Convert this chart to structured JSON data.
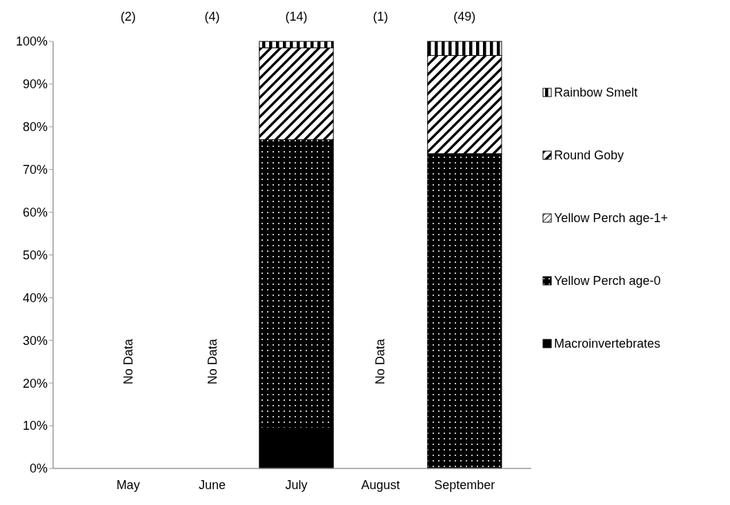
{
  "chart_data": {
    "type": "bar",
    "stacked": true,
    "categories": [
      "May",
      "June",
      "July",
      "August",
      "September"
    ],
    "series": [
      {
        "name": "Macroinvertebrates",
        "color": "#000000",
        "values": [
          null,
          null,
          9.5,
          null,
          0
        ]
      },
      {
        "name": "Yellow Perch age-0",
        "color": "#000000",
        "values": [
          null,
          null,
          67.5,
          null,
          73.7
        ]
      },
      {
        "name": "Yellow Perch age-1+",
        "color": "#000000",
        "values": [
          null,
          null,
          0,
          null,
          0
        ]
      },
      {
        "name": "Round Goby",
        "color": "#000000",
        "values": [
          null,
          null,
          21.5,
          null,
          23
        ]
      },
      {
        "name": "Rainbow Smelt",
        "color": "#000000",
        "values": [
          null,
          null,
          1.5,
          null,
          3.3
        ]
      }
    ],
    "ylim": [
      0,
      100
    ],
    "yticks": [
      {
        "value": 0,
        "label": "0%"
      },
      {
        "value": 10,
        "label": "10%"
      },
      {
        "value": 20,
        "label": "20%"
      },
      {
        "value": 30,
        "label": "30%"
      },
      {
        "value": 40,
        "label": "40%"
      },
      {
        "value": 50,
        "label": "50%"
      },
      {
        "value": 60,
        "label": "60%"
      },
      {
        "value": 70,
        "label": "70%"
      },
      {
        "value": 80,
        "label": "80%"
      },
      {
        "value": 90,
        "label": "90%"
      },
      {
        "value": 100,
        "label": "100%"
      }
    ],
    "annotations": [
      "(2)",
      "(4)",
      "(14)",
      "(1)",
      "(49)",
      "No Data",
      "No Data",
      "No Data"
    ],
    "legend": "right",
    "grid": false
  }
}
